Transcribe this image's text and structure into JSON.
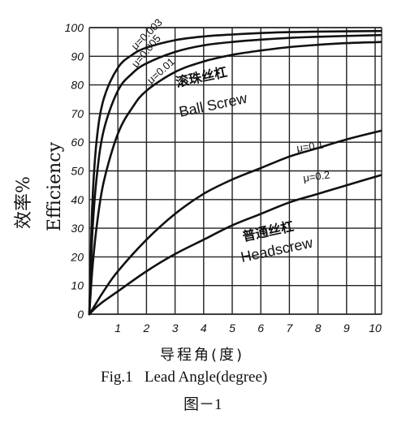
{
  "chart_data": {
    "type": "line",
    "xlabel": "导程角(度)",
    "ylabel_cn": "效率%",
    "ylabel_en": "Efficiency",
    "caption": "Fig.1   Lead Angle(degree)",
    "figure_number": "图－1",
    "xlim": [
      0,
      10.2
    ],
    "ylim": [
      0,
      100
    ],
    "x_ticks": [
      1,
      2,
      3,
      4,
      5,
      6,
      7,
      8,
      9,
      10
    ],
    "y_ticks": [
      0,
      10,
      20,
      30,
      40,
      50,
      60,
      70,
      80,
      90,
      100
    ],
    "grid": true,
    "group_labels": [
      {
        "cn": "滚珠丝杠",
        "en": "Ball Screw"
      },
      {
        "cn": "普通丝杠",
        "en": "Headscrew"
      }
    ],
    "series": [
      {
        "name": "μ=0.003",
        "x": [
          0,
          0.1,
          0.25,
          0.5,
          1,
          1.5,
          2,
          3,
          4,
          5,
          6,
          7,
          8,
          10.2
        ],
        "y": [
          0,
          37,
          60,
          75,
          86,
          90.5,
          93,
          95.6,
          96.9,
          97.6,
          98.1,
          98.4,
          98.6,
          98.8
        ]
      },
      {
        "name": "μ=0.005",
        "x": [
          0,
          0.1,
          0.25,
          0.5,
          1,
          1.5,
          2,
          3,
          4,
          5,
          6,
          7,
          8,
          10.2
        ],
        "y": [
          0,
          27,
          47,
          64,
          78,
          84,
          87.5,
          91.5,
          93.8,
          95,
          95.8,
          96.4,
          96.8,
          97.4
        ]
      },
      {
        "name": "μ=0.01",
        "x": [
          0,
          0.1,
          0.25,
          0.5,
          1,
          1.5,
          2,
          3,
          4,
          5,
          6,
          7,
          8,
          9,
          10.2
        ],
        "y": [
          0,
          15,
          30,
          46,
          63,
          72,
          78,
          84.5,
          88.2,
          90.5,
          92,
          93.2,
          94,
          94.6,
          95
        ]
      },
      {
        "name": "μ=0.1",
        "x": [
          0,
          0.25,
          0.5,
          1,
          2,
          3,
          4,
          5,
          6,
          7,
          8,
          9,
          10.2
        ],
        "y": [
          0,
          4,
          8,
          15,
          26,
          35,
          42,
          47,
          51,
          55,
          58,
          61,
          64
        ]
      },
      {
        "name": "μ=0.2",
        "x": [
          0,
          0.25,
          0.5,
          1,
          2,
          3,
          4,
          5,
          6,
          7,
          8,
          9,
          10.2
        ],
        "y": [
          0,
          2.5,
          4.5,
          8,
          15,
          21,
          26,
          31,
          35,
          39,
          42,
          45,
          48.5
        ]
      }
    ]
  }
}
